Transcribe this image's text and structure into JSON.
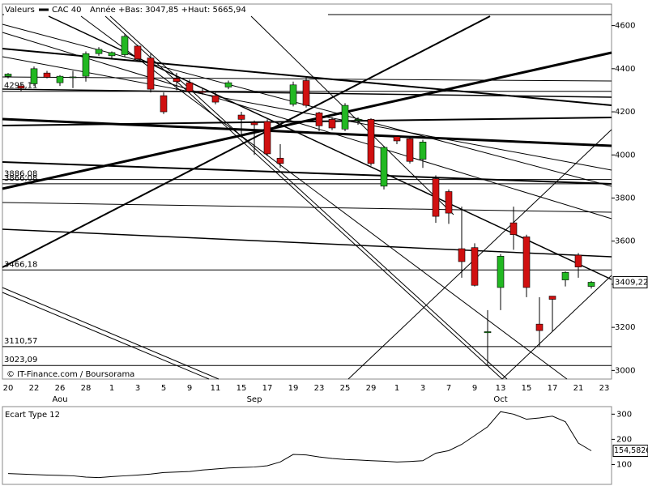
{
  "chart_data": [
    {
      "type": "candlestick",
      "header": "Valeurs",
      "stats": "Année +Bas: 3047,85 +Haut: 5665,94",
      "source": "© IT-Finance.com / Boursorama",
      "categories": [
        "20",
        null,
        "22",
        null,
        "26",
        null,
        "28",
        null,
        "1",
        null,
        "3",
        null,
        "5",
        null,
        "9",
        null,
        "11",
        null,
        "15",
        null,
        "17",
        null,
        "19",
        null,
        "23",
        null,
        "25",
        null,
        "29",
        null,
        "1",
        null,
        "3",
        null,
        "7",
        null,
        "9",
        null,
        "13",
        null,
        "15",
        null,
        "17",
        null,
        "21",
        null,
        "23"
      ],
      "month_labels": [
        {
          "label": "Aou",
          "category": 4
        },
        {
          "label": "Sep",
          "category": 19
        },
        {
          "label": "Oct",
          "category": 38
        }
      ],
      "series": [
        {
          "name": "CAC 40",
          "up_color": "#22b822",
          "down_color": "#d01010",
          "open": [
            4365,
            4320,
            4330,
            4380,
            4335,
            4360,
            4365,
            4470,
            4460,
            4465,
            4505,
            4450,
            4275,
            4355,
            4335,
            4295,
            4275,
            4315,
            4185,
            4150,
            4155,
            3985,
            4235,
            4345,
            4195,
            4165,
            4120,
            4160,
            4165,
            3855,
            4085,
            4075,
            3980,
            3890,
            3830,
            3565,
            3570,
            3175,
            3385,
            3685,
            3620,
            3215,
            3345,
            3420,
            3535,
            3390,
            null
          ],
          "high": [
            4380,
            4330,
            4410,
            4390,
            4370,
            4390,
            4480,
            4500,
            4480,
            4560,
            4510,
            4470,
            4290,
            4380,
            4350,
            4310,
            4290,
            4345,
            4200,
            4160,
            4165,
            4050,
            4340,
            4360,
            4200,
            4175,
            4240,
            4175,
            4170,
            4040,
            4090,
            4080,
            4070,
            3905,
            3840,
            3760,
            3590,
            3280,
            3540,
            3760,
            3630,
            3340,
            3345,
            3460,
            3545,
            3415,
            null
          ],
          "low": [
            4355,
            4295,
            4320,
            4355,
            4320,
            4310,
            4340,
            4460,
            4450,
            4455,
            4435,
            4290,
            4190,
            4300,
            4285,
            4280,
            4235,
            4305,
            4080,
            4000,
            3995,
            3940,
            4225,
            4220,
            4110,
            4115,
            4110,
            4140,
            3950,
            3840,
            4050,
            3960,
            3940,
            3685,
            3680,
            3430,
            3390,
            3025,
            3280,
            3560,
            3340,
            3110,
            3180,
            3390,
            3430,
            3380,
            null
          ],
          "close": [
            4375,
            4310,
            4400,
            4360,
            4365,
            4362,
            4470,
            4490,
            4475,
            4550,
            4445,
            4305,
            4200,
            4340,
            4295,
            4290,
            4245,
            4335,
            4165,
            4140,
            4005,
            3960,
            4325,
            4230,
            4135,
            4125,
            4230,
            4165,
            3960,
            4035,
            4065,
            3970,
            4060,
            3715,
            3730,
            3505,
            3395,
            3180,
            3530,
            3630,
            3385,
            3185,
            3330,
            3455,
            3480,
            3409.22,
            null
          ]
        }
      ],
      "last_label": {
        "value": 3409.22,
        "label": "3409,22"
      },
      "levels": [
        {
          "value": 4295.11,
          "label": "4295,11"
        },
        {
          "value": 3886.08,
          "label": "3886,08"
        },
        {
          "value": 3866.08,
          "label": "3866,08"
        },
        {
          "value": 3466.18,
          "label": "3466,18"
        },
        {
          "value": 3110.57,
          "label": "3110,57"
        },
        {
          "value": 3023.09,
          "label": "3023,09"
        }
      ],
      "ylim": [
        2960,
        4700
      ],
      "yticks": [
        3000,
        3200,
        3400,
        3600,
        3800,
        4000,
        4200,
        4400,
        4600
      ]
    },
    {
      "type": "line",
      "title": "Ecart Type 12",
      "color": "#000000",
      "values": [
        64,
        62,
        60,
        58,
        57,
        55,
        50,
        48,
        52,
        55,
        58,
        62,
        68,
        70,
        72,
        78,
        82,
        86,
        88,
        90,
        95,
        110,
        140,
        138,
        130,
        124,
        120,
        118,
        115,
        113,
        110,
        112,
        115,
        145,
        155,
        180,
        215,
        250,
        310,
        300,
        280,
        285,
        292,
        270,
        185,
        154.5826
      ],
      "value_labels": [
        null,
        null,
        null,
        null,
        null,
        null,
        null,
        null,
        null,
        null,
        null,
        null,
        null,
        null,
        null,
        null,
        null,
        null,
        null,
        null,
        null,
        null,
        null,
        null,
        null,
        null,
        null,
        null,
        null,
        null,
        null,
        null,
        null,
        null,
        null,
        null,
        null,
        null,
        null,
        null,
        null,
        null,
        null,
        null,
        null,
        "154,5826"
      ],
      "ylim": [
        21,
        330
      ],
      "yticks": [
        100,
        200,
        300
      ]
    }
  ]
}
